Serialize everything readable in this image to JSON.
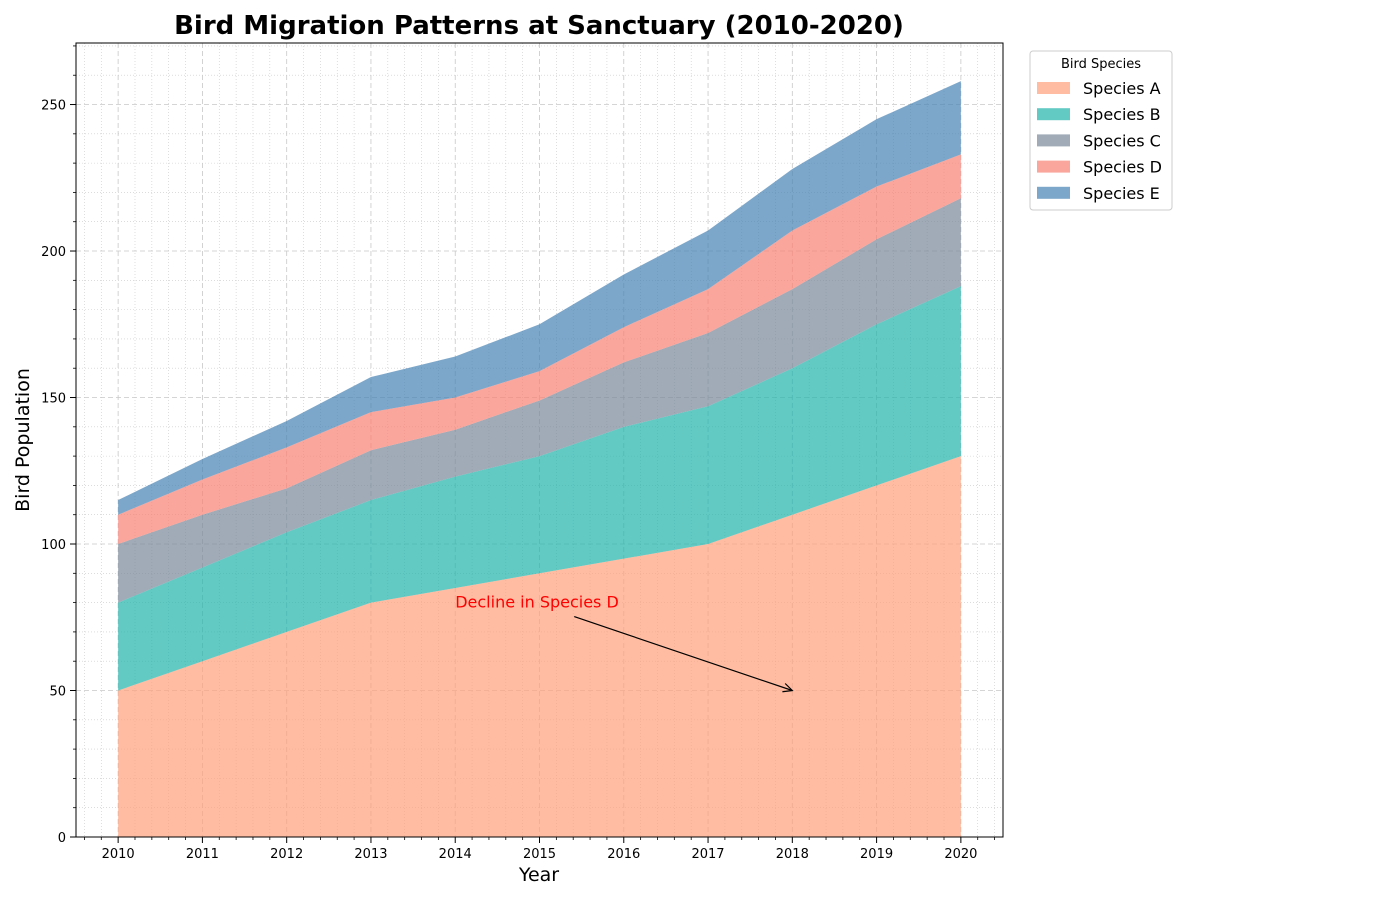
{
  "chart_data": {
    "type": "area",
    "stacked": true,
    "title": "Bird Migration Patterns at Sanctuary (2010-2020)",
    "xlabel": "Year",
    "ylabel": "Bird Population",
    "x": [
      2010,
      2011,
      2012,
      2013,
      2014,
      2015,
      2016,
      2017,
      2018,
      2019,
      2020
    ],
    "xlim": [
      2009.5,
      2020.5
    ],
    "ylim": [
      0,
      271
    ],
    "yticks": [
      0,
      50,
      100,
      150,
      200,
      250
    ],
    "grid": true,
    "legend": {
      "title": "Bird Species",
      "placement": "outside-top-right"
    },
    "series": [
      {
        "name": "Species A",
        "color": "#FFA07A",
        "values": [
          50,
          60,
          70,
          80,
          85,
          90,
          95,
          100,
          110,
          120,
          130
        ]
      },
      {
        "name": "Species B",
        "color": "#20B2AA",
        "values": [
          30,
          32,
          34,
          35,
          38,
          40,
          45,
          47,
          50,
          55,
          58
        ]
      },
      {
        "name": "Species C",
        "color": "#778899",
        "values": [
          20,
          18,
          15,
          17,
          16,
          19,
          22,
          25,
          27,
          29,
          30
        ]
      },
      {
        "name": "Species D",
        "color": "#FA8072",
        "values": [
          10,
          12,
          14,
          13,
          11,
          10,
          12,
          15,
          20,
          18,
          15
        ]
      },
      {
        "name": "Species E",
        "color": "#4682B4",
        "values": [
          5,
          7,
          9,
          12,
          14,
          16,
          18,
          20,
          21,
          23,
          25
        ]
      }
    ],
    "annotations": [
      {
        "text": "Decline in Species D",
        "color": "#FF0000",
        "text_at": [
          2014.0,
          80
        ],
        "arrow_to": [
          2018.0,
          50
        ]
      }
    ]
  }
}
